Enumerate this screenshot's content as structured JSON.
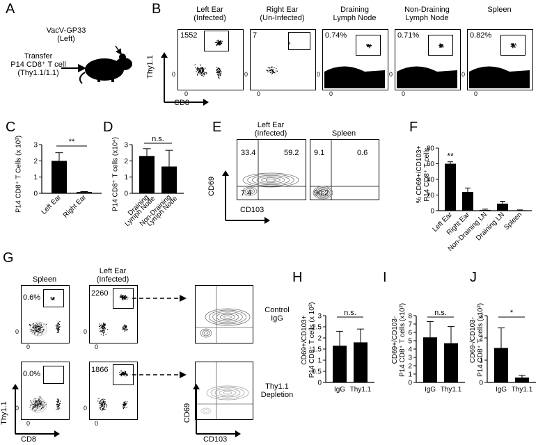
{
  "panel_A": {
    "letter": "A",
    "transfer_text": [
      "Transfer",
      "P14 CD8⁺ T cell",
      "(Thy1.1/1.1)"
    ],
    "infection_text": [
      "VacV-GP33",
      "(Left)"
    ]
  },
  "panel_B": {
    "letter": "B",
    "plots": [
      {
        "title": [
          "Left Ear",
          "(Infected)"
        ],
        "gate_value": "1552"
      },
      {
        "title": [
          "Right Ear",
          "(Un-Infected)"
        ],
        "gate_value": "7"
      },
      {
        "title": [
          "Draining",
          "Lymph Node"
        ],
        "gate_value": "0.74%"
      },
      {
        "title": [
          "Non-Draining",
          "Lymph Node"
        ],
        "gate_value": "0.71%"
      },
      {
        "title": [
          "Spleen"
        ],
        "gate_value": "0.82%"
      }
    ],
    "y_axis": "Thy1.1",
    "x_axis": "CD8",
    "tick": "0"
  },
  "panel_C": {
    "letter": "C",
    "ylabel": "P14 CD8⁺ T Cells (x 10³)",
    "significance": "**",
    "chart_data": {
      "type": "bar",
      "categories": [
        "Left Ear",
        "Right Ear"
      ],
      "values": [
        2.0,
        0.08
      ],
      "errors": [
        0.5,
        0.03
      ],
      "ylim": [
        0,
        3
      ],
      "yticks": [
        "0",
        "1",
        "2",
        "3"
      ]
    }
  },
  "panel_D": {
    "letter": "D",
    "ylabel": "P14 CD8⁺ T cells (x10⁴)",
    "significance": "n.s.",
    "chart_data": {
      "type": "bar",
      "categories": [
        "Draining Lymph Node",
        "Non-Draining Lymph Node"
      ],
      "category_lines": [
        [
          "Draining",
          "Lymph Node"
        ],
        [
          "Non-Draining",
          "Lymph Node"
        ]
      ],
      "values": [
        2.3,
        1.65
      ],
      "errors": [
        0.45,
        1.0
      ],
      "ylim": [
        0,
        3
      ],
      "yticks": [
        "0",
        "1",
        "2",
        "3"
      ]
    }
  },
  "panel_E": {
    "letter": "E",
    "plots": [
      {
        "title": [
          "Left Ear",
          "(Infected)"
        ],
        "q_ul": "33.4",
        "q_ur": "59.2",
        "q_ll": "7.4"
      },
      {
        "title": [
          "Spleen"
        ],
        "q_ul": "9.1",
        "q_ur": "0.6",
        "q_ll": "90.2"
      }
    ],
    "y_axis": "CD69",
    "x_axis": "CD103"
  },
  "panel_F": {
    "letter": "F",
    "ylabel": [
      "% CD69+/CD103+",
      "P14 CD8⁺ T cells"
    ],
    "significance": "**",
    "chart_data": {
      "type": "bar",
      "categories": [
        "Left Ear",
        "Right Ear",
        "Non-Draining LN",
        "Draining LN",
        "Spleen"
      ],
      "values": [
        60,
        24,
        1,
        9,
        0.5
      ],
      "errors": [
        2.5,
        5,
        1,
        3,
        0.5
      ],
      "ylim": [
        0,
        80
      ],
      "yticks": [
        "0",
        "20",
        "40",
        "60",
        "80"
      ]
    }
  },
  "panel_G": {
    "letter": "G",
    "col_titles": [
      [
        "Spleen"
      ],
      [
        "Left Ear",
        "(Infected)"
      ]
    ],
    "rows": [
      {
        "spleen_value": "0.6%",
        "ear_value": "2260",
        "label": [
          "Control",
          "IgG"
        ]
      },
      {
        "spleen_value": "0.0%",
        "ear_value": "1866",
        "label": [
          "Thy1.1",
          "Depletion"
        ]
      }
    ],
    "y_axis": "Thy1.1",
    "x_axis": "CD8",
    "contour_y": "CD69",
    "contour_x": "CD103",
    "tick": "0"
  },
  "panel_H": {
    "letter": "H",
    "ylabel": [
      "CD69+/CD103+",
      "P14 CD8⁺ T cells (x 10³)"
    ],
    "significance": "n.s.",
    "chart_data": {
      "type": "bar",
      "categories": [
        "IgG",
        "Thy1.1"
      ],
      "values": [
        1.65,
        1.8
      ],
      "errors": [
        0.65,
        0.6
      ],
      "ylim": [
        0,
        3
      ],
      "yticks": [
        "0",
        "0.5",
        "1",
        "1.5",
        "2",
        "2.5",
        "3"
      ]
    }
  },
  "panel_I": {
    "letter": "I",
    "ylabel": [
      "CD69+/CD103-",
      "P14 CD8⁺ T cells (x10²)"
    ],
    "significance": "n.s.",
    "chart_data": {
      "type": "bar",
      "categories": [
        "IgG",
        "Thy1.1"
      ],
      "values": [
        5.4,
        4.7
      ],
      "errors": [
        1.9,
        2.0
      ],
      "ylim": [
        0,
        8
      ],
      "yticks": [
        "0",
        "1",
        "2",
        "3",
        "4",
        "5",
        "6",
        "7",
        "8"
      ]
    }
  },
  "panel_J": {
    "letter": "J",
    "ylabel": [
      "CD69-/CD103-",
      "P14 CD8⁺ T cells (x10²)"
    ],
    "significance": "*",
    "chart_data": {
      "type": "bar",
      "categories": [
        "IgG",
        "Thy1.1"
      ],
      "values": [
        1.55,
        0.22
      ],
      "errors": [
        0.9,
        0.1
      ],
      "ylim": [
        0,
        3
      ],
      "yticks": [
        "0",
        "1",
        "2",
        "3"
      ]
    }
  }
}
